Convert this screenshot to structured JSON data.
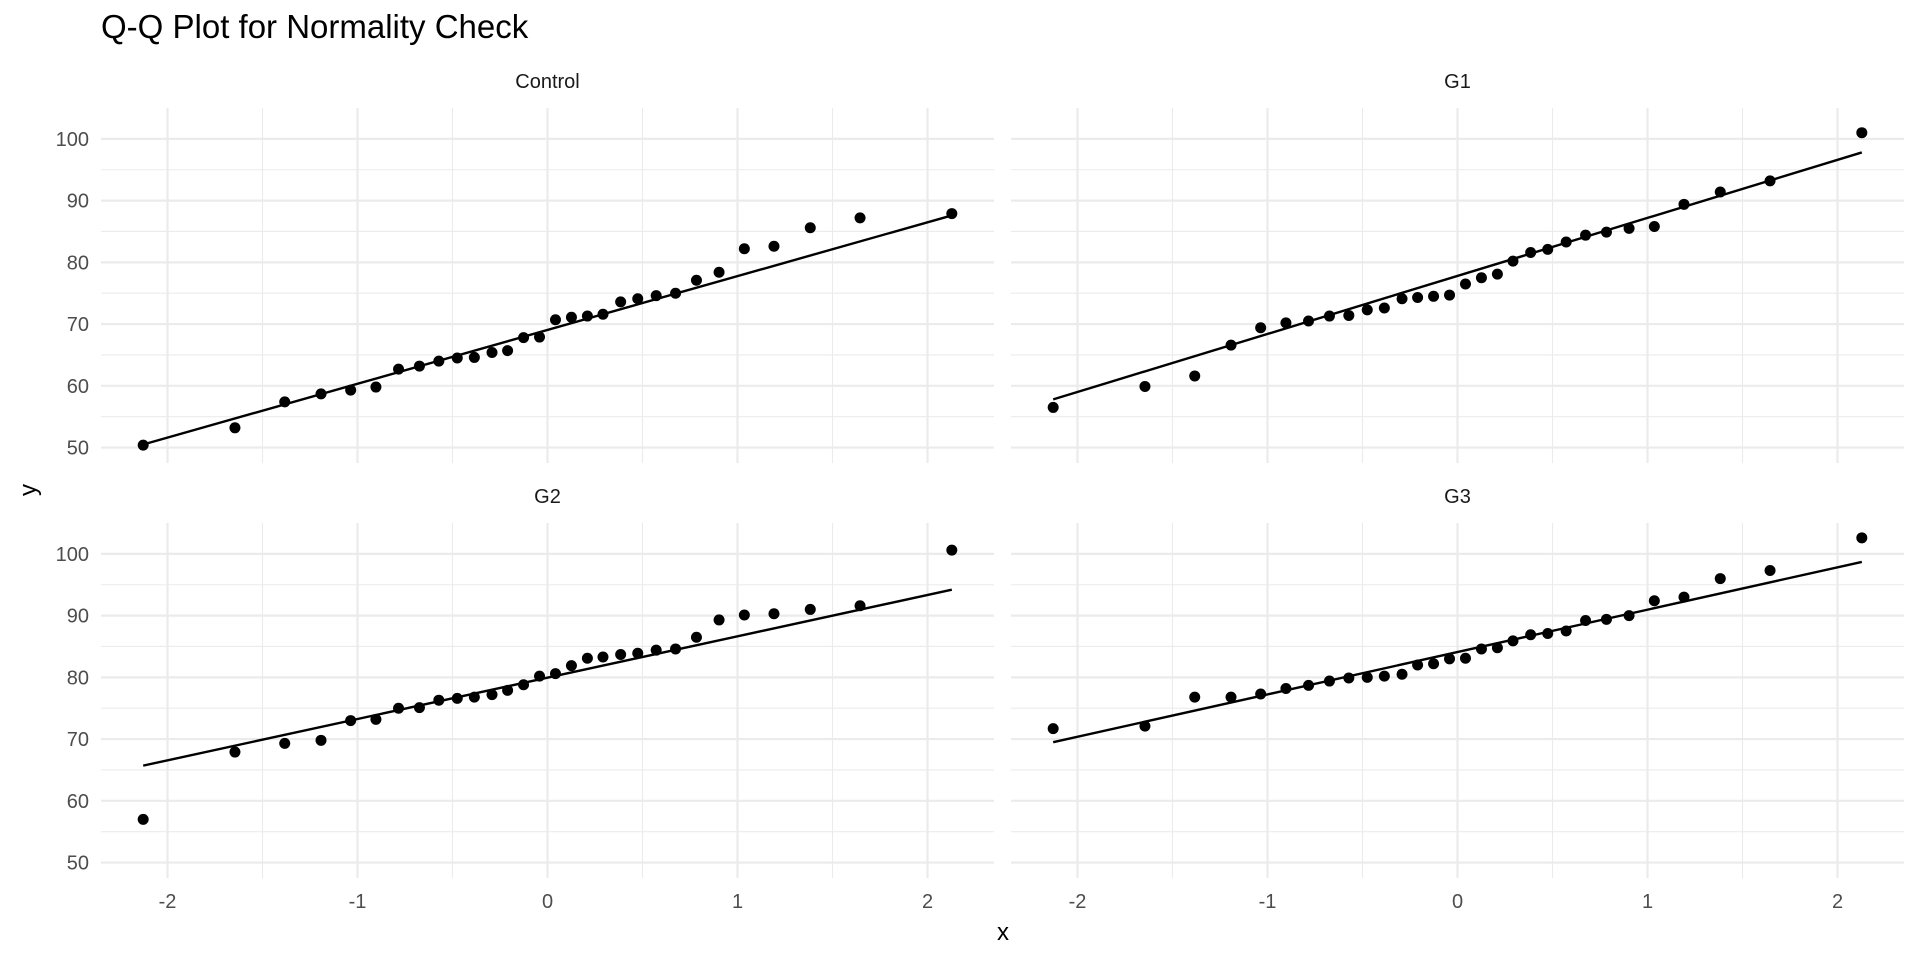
{
  "chart_data": {
    "type": "scatter",
    "title": "Q-Q Plot for Normality Check",
    "xlabel": "x",
    "ylabel": "y",
    "xlim": [
      -2.35,
      2.35
    ],
    "ylim": [
      47.5,
      105
    ],
    "x_ticks": [
      -2,
      -1,
      0,
      1,
      2
    ],
    "y_ticks": [
      50,
      60,
      70,
      80,
      90,
      100
    ],
    "x_tick_labels": [
      "-2",
      "-1",
      "0",
      "1",
      "2"
    ],
    "y_tick_labels": [
      "50",
      "60",
      "70",
      "80",
      "90",
      "100"
    ],
    "x": [
      -2.128,
      -1.645,
      -1.383,
      -1.192,
      -1.036,
      -0.903,
      -0.784,
      -0.674,
      -0.572,
      -0.475,
      -0.385,
      -0.292,
      -0.21,
      -0.126,
      -0.042,
      0.042,
      0.126,
      0.21,
      0.292,
      0.385,
      0.475,
      0.572,
      0.674,
      0.784,
      0.903,
      1.036,
      1.192,
      1.383,
      1.645,
      2.128
    ],
    "panels": [
      {
        "name": "Control",
        "line": [
          [
            -2.128,
            50.5
          ],
          [
            2.128,
            87.6
          ]
        ],
        "values": [
          50.4,
          53.2,
          57.4,
          58.7,
          59.3,
          59.8,
          62.7,
          63.2,
          64.0,
          64.5,
          64.6,
          65.4,
          65.7,
          67.8,
          67.9,
          70.7,
          71.1,
          71.3,
          71.6,
          73.6,
          74.1,
          74.6,
          75.0,
          77.1,
          78.4,
          82.2,
          82.6,
          85.6,
          87.2,
          87.9
        ]
      },
      {
        "name": "G1",
        "line": [
          [
            -2.128,
            57.8
          ],
          [
            2.128,
            97.8
          ]
        ],
        "values": [
          56.5,
          59.9,
          61.6,
          66.6,
          69.4,
          70.2,
          70.5,
          71.3,
          71.4,
          72.3,
          72.6,
          74.1,
          74.3,
          74.5,
          74.7,
          76.5,
          77.5,
          78.1,
          80.2,
          81.6,
          82.1,
          83.3,
          84.4,
          84.9,
          85.5,
          85.8,
          89.4,
          91.4,
          93.2,
          101.0
        ]
      },
      {
        "name": "G2",
        "line": [
          [
            -2.128,
            65.7
          ],
          [
            2.128,
            94.2
          ]
        ],
        "values": [
          57.0,
          67.9,
          69.3,
          69.8,
          73.0,
          73.2,
          75.0,
          75.1,
          76.3,
          76.6,
          76.8,
          77.2,
          77.9,
          78.8,
          80.2,
          80.6,
          81.9,
          83.1,
          83.3,
          83.7,
          83.9,
          84.4,
          84.6,
          86.5,
          89.3,
          90.1,
          90.3,
          91.0,
          91.6,
          100.6
        ]
      },
      {
        "name": "G3",
        "line": [
          [
            -2.128,
            69.5
          ],
          [
            2.128,
            98.7
          ]
        ],
        "values": [
          71.7,
          72.1,
          76.8,
          76.8,
          77.3,
          78.2,
          78.7,
          79.4,
          79.9,
          80.0,
          80.2,
          80.5,
          82.0,
          82.2,
          83.0,
          83.1,
          84.6,
          84.8,
          85.9,
          86.9,
          87.1,
          87.5,
          89.2,
          89.4,
          90.0,
          92.4,
          93.0,
          96.0,
          97.3,
          102.6
        ]
      }
    ]
  }
}
